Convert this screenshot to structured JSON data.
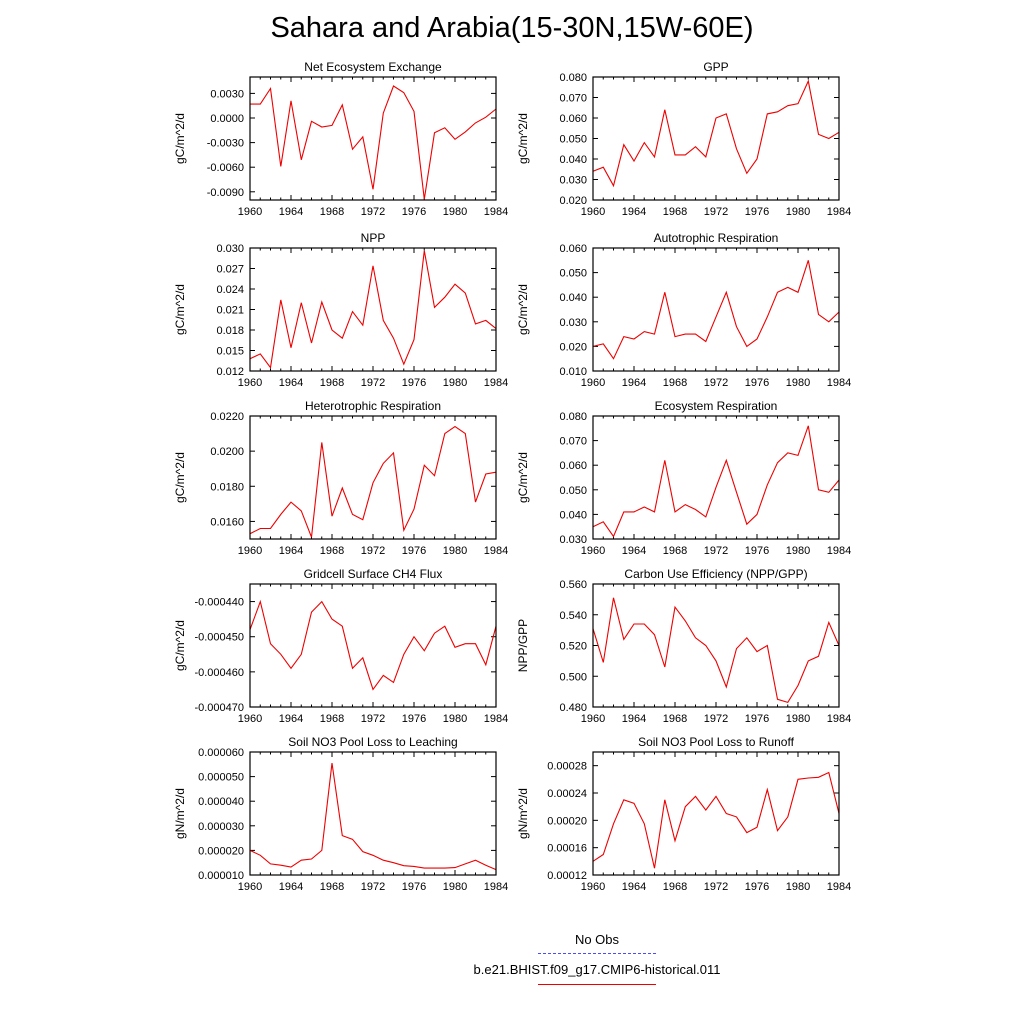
{
  "page_title": "Sahara and Arabia(15-30N,15W-60E)",
  "legend": {
    "obs_label": "No Obs",
    "run_label": "b.e21.BHIST.f09_g17.CMIP6-historical.011",
    "obs_color": "#4a4aff",
    "run_color": "#ee0000"
  },
  "chart_data": [
    {
      "type": "line",
      "title": "Net Ecosystem Exchange",
      "ylabel": "gC/m^2/d",
      "xlim": [
        1960,
        1984
      ],
      "ylim": [
        -0.01,
        0.005
      ],
      "xticks": [
        "1960",
        "1964",
        "1968",
        "1972",
        "1976",
        "1980",
        "1984"
      ],
      "yticks": [
        "-0.0090",
        "-0.0060",
        "-0.0030",
        "0.0000",
        "0.0030"
      ],
      "series": [
        {
          "x": [
            1960,
            1961,
            1962,
            1963,
            1964,
            1965,
            1966,
            1967,
            1968,
            1969,
            1970,
            1971,
            1972,
            1973,
            1974,
            1975,
            1976,
            1977,
            1978,
            1979,
            1980,
            1981,
            1982,
            1983,
            1984
          ],
          "values": [
            0.0017,
            0.0017,
            0.0036,
            -0.0059,
            0.0021,
            -0.0051,
            -0.0004,
            -0.0011,
            -0.0009,
            0.0016,
            -0.0038,
            -0.0023,
            -0.0087,
            0.0006,
            0.0039,
            0.0031,
            0.0008,
            -0.0099,
            -0.0018,
            -0.0012,
            -0.0026,
            -0.0017,
            -0.0006,
            0.0001,
            0.0011
          ]
        }
      ]
    },
    {
      "type": "line",
      "title": "GPP",
      "ylabel": "gC/m^2/d",
      "xlim": [
        1960,
        1984
      ],
      "ylim": [
        0.02,
        0.08
      ],
      "xticks": [
        "1960",
        "1964",
        "1968",
        "1972",
        "1976",
        "1980",
        "1984"
      ],
      "yticks": [
        "0.020",
        "0.030",
        "0.040",
        "0.050",
        "0.060",
        "0.070",
        "0.080"
      ],
      "series": [
        {
          "x": [
            1960,
            1961,
            1962,
            1963,
            1964,
            1965,
            1966,
            1967,
            1968,
            1969,
            1970,
            1971,
            1972,
            1973,
            1974,
            1975,
            1976,
            1977,
            1978,
            1979,
            1980,
            1981,
            1982,
            1983,
            1984
          ],
          "values": [
            0.034,
            0.036,
            0.027,
            0.047,
            0.039,
            0.048,
            0.041,
            0.064,
            0.042,
            0.042,
            0.046,
            0.041,
            0.06,
            0.062,
            0.045,
            0.033,
            0.04,
            0.062,
            0.063,
            0.066,
            0.067,
            0.078,
            0.052,
            0.05,
            0.053
          ]
        }
      ]
    },
    {
      "type": "line",
      "title": "NPP",
      "ylabel": "gC/m^2/d",
      "xlim": [
        1960,
        1984
      ],
      "ylim": [
        0.012,
        0.03
      ],
      "xticks": [
        "1960",
        "1964",
        "1968",
        "1972",
        "1976",
        "1980",
        "1984"
      ],
      "yticks": [
        "0.012",
        "0.015",
        "0.018",
        "0.021",
        "0.024",
        "0.027",
        "0.030"
      ],
      "series": [
        {
          "x": [
            1960,
            1961,
            1962,
            1963,
            1964,
            1965,
            1966,
            1967,
            1968,
            1969,
            1970,
            1971,
            1972,
            1973,
            1974,
            1975,
            1976,
            1977,
            1978,
            1979,
            1980,
            1981,
            1982,
            1983,
            1984
          ],
          "values": [
            0.0138,
            0.0145,
            0.0125,
            0.0224,
            0.0154,
            0.022,
            0.0161,
            0.0221,
            0.018,
            0.0168,
            0.0207,
            0.0187,
            0.0274,
            0.0194,
            0.0168,
            0.013,
            0.0166,
            0.0296,
            0.0213,
            0.0228,
            0.0247,
            0.0234,
            0.0189,
            0.0194,
            0.0182
          ]
        }
      ]
    },
    {
      "type": "line",
      "title": "Autotrophic Respiration",
      "ylabel": "gC/m^2/d",
      "xlim": [
        1960,
        1984
      ],
      "ylim": [
        0.01,
        0.06
      ],
      "xticks": [
        "1960",
        "1964",
        "1968",
        "1972",
        "1976",
        "1980",
        "1984"
      ],
      "yticks": [
        "0.010",
        "0.020",
        "0.030",
        "0.040",
        "0.050",
        "0.060"
      ],
      "series": [
        {
          "x": [
            1960,
            1961,
            1962,
            1963,
            1964,
            1965,
            1966,
            1967,
            1968,
            1969,
            1970,
            1971,
            1972,
            1973,
            1974,
            1975,
            1976,
            1977,
            1978,
            1979,
            1980,
            1981,
            1982,
            1983,
            1984
          ],
          "values": [
            0.02,
            0.021,
            0.015,
            0.024,
            0.023,
            0.026,
            0.025,
            0.042,
            0.024,
            0.025,
            0.025,
            0.022,
            0.032,
            0.042,
            0.028,
            0.02,
            0.023,
            0.032,
            0.042,
            0.044,
            0.042,
            0.055,
            0.033,
            0.03,
            0.034
          ]
        }
      ]
    },
    {
      "type": "line",
      "title": "Heterotrophic Respiration",
      "ylabel": "gC/m^2/d",
      "xlim": [
        1960,
        1984
      ],
      "ylim": [
        0.015,
        0.022
      ],
      "xticks": [
        "1960",
        "1964",
        "1968",
        "1972",
        "1976",
        "1980",
        "1984"
      ],
      "yticks": [
        "0.0160",
        "0.0180",
        "0.0200",
        "0.0220"
      ],
      "series": [
        {
          "x": [
            1960,
            1961,
            1962,
            1963,
            1964,
            1965,
            1966,
            1967,
            1968,
            1969,
            1970,
            1971,
            1972,
            1973,
            1974,
            1975,
            1976,
            1977,
            1978,
            1979,
            1980,
            1981,
            1982,
            1983,
            1984
          ],
          "values": [
            0.0153,
            0.0156,
            0.0156,
            0.0164,
            0.0171,
            0.0166,
            0.0151,
            0.0205,
            0.0163,
            0.0179,
            0.0164,
            0.0161,
            0.0182,
            0.0193,
            0.0199,
            0.0155,
            0.0167,
            0.0192,
            0.0186,
            0.021,
            0.0214,
            0.021,
            0.0171,
            0.0187,
            0.0188
          ]
        }
      ]
    },
    {
      "type": "line",
      "title": "Ecosystem Respiration",
      "ylabel": "gC/m^2/d",
      "xlim": [
        1960,
        1984
      ],
      "ylim": [
        0.03,
        0.08
      ],
      "xticks": [
        "1960",
        "1964",
        "1968",
        "1972",
        "1976",
        "1980",
        "1984"
      ],
      "yticks": [
        "0.030",
        "0.040",
        "0.050",
        "0.060",
        "0.070",
        "0.080"
      ],
      "series": [
        {
          "x": [
            1960,
            1961,
            1962,
            1963,
            1964,
            1965,
            1966,
            1967,
            1968,
            1969,
            1970,
            1971,
            1972,
            1973,
            1974,
            1975,
            1976,
            1977,
            1978,
            1979,
            1980,
            1981,
            1982,
            1983,
            1984
          ],
          "values": [
            0.035,
            0.037,
            0.031,
            0.041,
            0.041,
            0.043,
            0.041,
            0.062,
            0.041,
            0.044,
            0.042,
            0.039,
            0.051,
            0.062,
            0.049,
            0.036,
            0.04,
            0.052,
            0.061,
            0.065,
            0.064,
            0.076,
            0.05,
            0.049,
            0.054
          ]
        }
      ]
    },
    {
      "type": "line",
      "title": "Gridcell Surface CH4 Flux",
      "ylabel": "gC/m^2/d",
      "xlim": [
        1960,
        1984
      ],
      "ylim": [
        -0.00047,
        -0.000435
      ],
      "xticks": [
        "1960",
        "1964",
        "1968",
        "1972",
        "1976",
        "1980",
        "1984"
      ],
      "yticks": [
        "-0.000470",
        "-0.000460",
        "-0.000450",
        "-0.000440"
      ],
      "series": [
        {
          "x": [
            1960,
            1961,
            1962,
            1963,
            1964,
            1965,
            1966,
            1967,
            1968,
            1969,
            1970,
            1971,
            1972,
            1973,
            1974,
            1975,
            1976,
            1977,
            1978,
            1979,
            1980,
            1981,
            1982,
            1983,
            1984
          ],
          "values": [
            -0.000448,
            -0.00044,
            -0.000452,
            -0.000455,
            -0.000459,
            -0.000455,
            -0.000443,
            -0.00044,
            -0.000445,
            -0.000447,
            -0.000459,
            -0.000456,
            -0.000465,
            -0.000461,
            -0.000463,
            -0.000455,
            -0.00045,
            -0.000454,
            -0.000449,
            -0.000447,
            -0.000453,
            -0.000452,
            -0.000452,
            -0.000458,
            -0.000447
          ]
        }
      ]
    },
    {
      "type": "line",
      "title": "Carbon Use Efficiency (NPP/GPP)",
      "ylabel": "NPP/GPP",
      "xlim": [
        1960,
        1984
      ],
      "ylim": [
        0.48,
        0.56
      ],
      "xticks": [
        "1960",
        "1964",
        "1968",
        "1972",
        "1976",
        "1980",
        "1984"
      ],
      "yticks": [
        "0.480",
        "0.500",
        "0.520",
        "0.540",
        "0.560"
      ],
      "series": [
        {
          "x": [
            1960,
            1961,
            1962,
            1963,
            1964,
            1965,
            1966,
            1967,
            1968,
            1969,
            1970,
            1971,
            1972,
            1973,
            1974,
            1975,
            1976,
            1977,
            1978,
            1979,
            1980,
            1981,
            1982,
            1983,
            1984
          ],
          "values": [
            0.531,
            0.509,
            0.551,
            0.524,
            0.534,
            0.534,
            0.527,
            0.506,
            0.545,
            0.536,
            0.525,
            0.52,
            0.51,
            0.493,
            0.518,
            0.525,
            0.516,
            0.52,
            0.485,
            0.483,
            0.494,
            0.51,
            0.513,
            0.535,
            0.52
          ]
        }
      ]
    },
    {
      "type": "line",
      "title": "Soil NO3 Pool Loss to Leaching",
      "ylabel": "gN/m^2/d",
      "xlim": [
        1960,
        1984
      ],
      "ylim": [
        1e-05,
        6e-05
      ],
      "xticks": [
        "1960",
        "1964",
        "1968",
        "1972",
        "1976",
        "1980",
        "1984"
      ],
      "yticks": [
        "0.000010",
        "0.000020",
        "0.000030",
        "0.000040",
        "0.000050",
        "0.000060"
      ],
      "series": [
        {
          "x": [
            1960,
            1961,
            1962,
            1963,
            1964,
            1965,
            1966,
            1967,
            1968,
            1969,
            1970,
            1971,
            1972,
            1973,
            1974,
            1975,
            1976,
            1977,
            1978,
            1979,
            1980,
            1981,
            1982,
            1983,
            1984
          ],
          "values": [
            2e-05,
            1.8e-05,
            1.45e-05,
            1.4e-05,
            1.32e-05,
            1.6e-05,
            1.65e-05,
            2e-05,
            5.55e-05,
            2.6e-05,
            2.45e-05,
            1.95e-05,
            1.8e-05,
            1.6e-05,
            1.5e-05,
            1.38e-05,
            1.35e-05,
            1.28e-05,
            1.28e-05,
            1.28e-05,
            1.3e-05,
            1.45e-05,
            1.6e-05,
            1.4e-05,
            1.22e-05
          ]
        }
      ]
    },
    {
      "type": "line",
      "title": "Soil NO3 Pool Loss to Runoff",
      "ylabel": "gN/m^2/d",
      "xlim": [
        1960,
        1984
      ],
      "ylim": [
        0.00012,
        0.0003
      ],
      "xticks": [
        "1960",
        "1964",
        "1968",
        "1972",
        "1976",
        "1980",
        "1984"
      ],
      "yticks": [
        "0.00012",
        "0.00016",
        "0.00020",
        "0.00024",
        "0.00028"
      ],
      "series": [
        {
          "x": [
            1960,
            1961,
            1962,
            1963,
            1964,
            1965,
            1966,
            1967,
            1968,
            1969,
            1970,
            1971,
            1972,
            1973,
            1974,
            1975,
            1976,
            1977,
            1978,
            1979,
            1980,
            1981,
            1982,
            1983,
            1984
          ],
          "values": [
            0.00014,
            0.00015,
            0.000195,
            0.00023,
            0.000225,
            0.000195,
            0.00013,
            0.00023,
            0.00017,
            0.00022,
            0.000235,
            0.000215,
            0.000235,
            0.00021,
            0.000205,
            0.000182,
            0.00019,
            0.000245,
            0.000185,
            0.000205,
            0.00026,
            0.000262,
            0.000263,
            0.00027,
            0.00021
          ]
        }
      ]
    }
  ]
}
